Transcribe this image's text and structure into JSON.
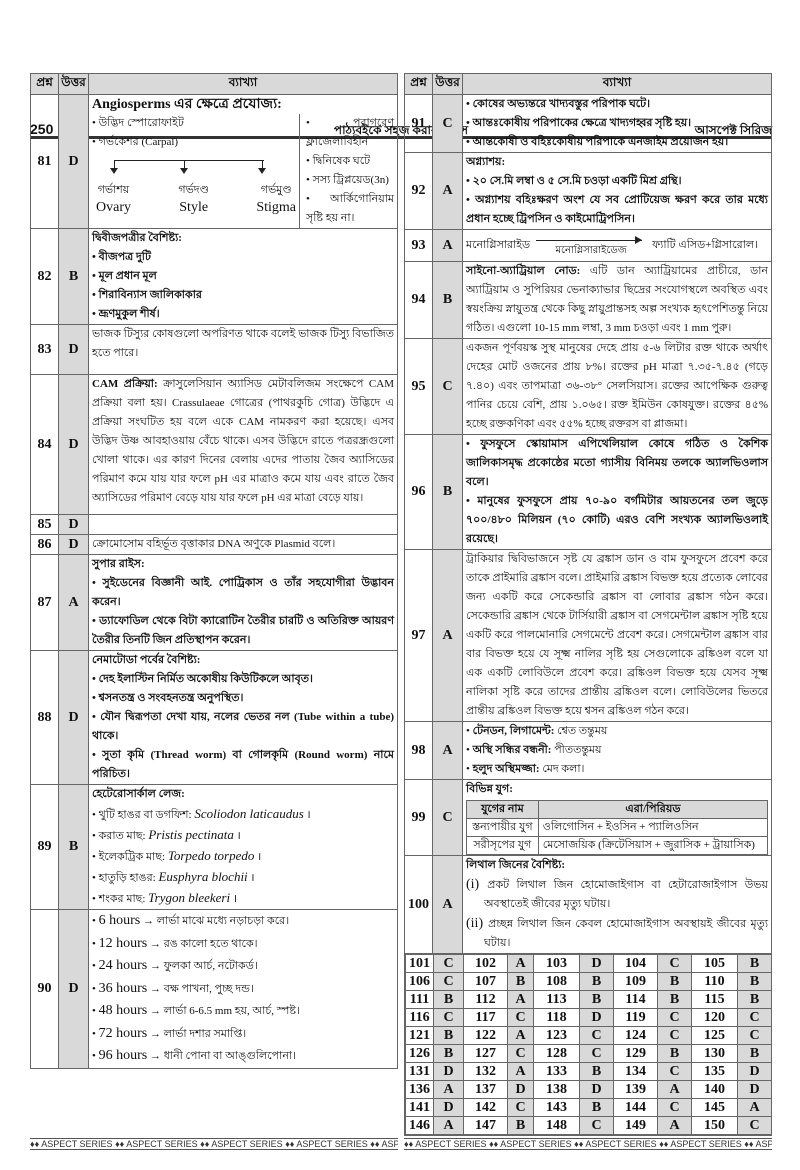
{
  "header": {
    "page_number": "250",
    "center_title": "পাঠ্যবইকে সহজ করার প্রয়াস",
    "right_title": "আসপেক্ট সিরিজ"
  },
  "columns": {
    "q": "প্রশ্ন",
    "a": "উত্তর",
    "e": "ব্যাখ্যা"
  },
  "left_rows": [
    {
      "n": "81",
      "a": "D",
      "type": "angio",
      "title": "Angiosperms এর ক্ষেত্রে প্রযোজ্য:",
      "left": [
        "উদ্ভিদ স্পোরোফাইট",
        "গর্ভকেশর (Carpal)"
      ],
      "parts": [
        {
          "bn": "গর্ভাশয়",
          "en": "Ovary"
        },
        {
          "bn": "গর্ভদণ্ড",
          "en": "Style"
        },
        {
          "bn": "গর্ভমুণ্ড",
          "en": "Stigma"
        }
      ],
      "right": [
        "পরাগরেণু ফ্লাজেলাবিহীন",
        "দ্বিনিষেক ঘটে",
        "সস্য ট্রিপ্লয়েড(3n)",
        "আর্কিগোনিয়াম সৃষ্টি হয় না।"
      ]
    },
    {
      "n": "82",
      "a": "B",
      "heading": "দ্বিবীজপত্রীর বৈশিষ্ট্য:",
      "bullets": [
        "বীজপত্র দুটি",
        "মূল প্রধান মূল",
        "শিরাবিন্যাস জালিকাকার",
        "ভ্রূণমুকুল শীর্ষ।"
      ]
    },
    {
      "n": "83",
      "a": "D",
      "para": "ভাজক টিস্যুর কোষগুলো অপরিণত থাকে বলেই ভাজক টিস্যু বিভাজিত হতে পারে।"
    },
    {
      "n": "84",
      "a": "D",
      "lead": "CAM প্রক্রিয়া:",
      "para": "ক্রাসুলেসিয়ান অ্যাসিড মেটাবলিজম সংক্ষেপে CAM প্রক্রিয়া বলা হয়। Crassulaeae গোত্রের (পাথরকুচি গোত্র) উদ্ভিদে এ প্রক্রিয়া সংঘটিত হয় বলে একে CAM নামকরণ করা হয়েছে। এসব উদ্ভিদ উষ্ণ আবহাওয়ায় বেঁচে থাকে। এসব উদ্ভিদে রাতে পত্ররন্ধ্রগুলো খোলা থাকে। এর কারণ দিনের বেলায় এদের পাতায় জৈব অ্যাসিডের পরিমাণ কমে যায় যার ফলে pH এর মাত্রাও কমে যায় এবং রাতে জৈব অ্যাসিডের পরিমাণ বেড়ে যায় যার ফলে pH এর মাত্রা বেড়ে যায়।"
    },
    {
      "n": "85",
      "a": "D"
    },
    {
      "n": "86",
      "a": "D",
      "para": "ক্রোমোসোম বহির্ভূত বৃত্তাকার DNA অণুকে Plasmid বলে।"
    },
    {
      "n": "87",
      "a": "A",
      "heading": "সুপার রাইস:",
      "bullets": [
        "সুইডেনের বিজ্ঞানী আই. পোট্রিকাস ও তাঁর সহযোগীরা উদ্ভাবন করেন।",
        "ড্যাফোডিল থেকে বিটা ক্যারোটিন তৈরীর চারটি ও অতিরিক্ত আয়রণ তৈরীর তিনটি জিন প্রতিস্থাপন করেন।"
      ]
    },
    {
      "n": "88",
      "a": "D",
      "heading": "নেমাটোডা পর্বের বৈশিষ্ট্য:",
      "bullets": [
        "দেহ ইলাস্টিন নির্মিত অকোষীয় কিউটিকলে আবৃত।",
        {
          "t": "শ্বসনতন্ত্র ও সংবহনতন্ত্র অনুপস্থিত।",
          "bold": true
        },
        {
          "t": "যৌন দ্বিরূপতা দেখা যায়, নলের ভেতর নল (Tube within a tube) থাকে।",
          "bold": true
        },
        "সুতা কৃমি (Thread worm) বা গোলকৃমি (Round worm) নামে পরিচিত।"
      ]
    },
    {
      "n": "89",
      "a": "B",
      "heading": "হেটেরোসার্কাল লেজ:",
      "species": [
        {
          "label": "থুটি হাঙর বা ডগফিশ:",
          "sci": "Scoliodon laticaudus"
        },
        {
          "label": "করাত মাছ:",
          "sci": "Pristis pectinata"
        },
        {
          "label": "ইলেকট্রিক মাছ:",
          "sci": "Torpedo torpedo"
        },
        {
          "label": "হাতুড়ি হাঙর:",
          "sci": "Eusphyra blochii"
        },
        {
          "label": "শংকর মাছ:",
          "sci": "Trygon bleekeri"
        }
      ]
    },
    {
      "n": "90",
      "a": "D",
      "hours": [
        {
          "h": "6 hours",
          "t": "লার্ভা মাঝে মধ্যে নড়াচড়া করে।"
        },
        {
          "h": "12 hours",
          "t": "রঙ কালো হতে থাকে।"
        },
        {
          "h": "24 hours",
          "t": "ফুলকা আর্চ, নটোকর্ড।"
        },
        {
          "h": "36 hours",
          "t": "বক্ষ পাখনা, পুচ্ছ দন্ড।"
        },
        {
          "h": "48 hours",
          "t": "লার্ভা 6-6.5 mm হয়, আর্চ, স্পষ্ট।"
        },
        {
          "h": "72 hours",
          "t": "লার্ভা দশার সমাপ্তি।"
        },
        {
          "h": "96 hours",
          "t": "ধানী পোনা বা আঙ্গুলিপোনা।"
        }
      ]
    }
  ],
  "right_rows": [
    {
      "n": "91",
      "a": "C",
      "bullets": [
        "কোষের অভ্যন্তরে খাদ্যবস্তুর পরিপাক ঘটে।",
        "আন্তঃকোষীয় পরিপাকের ক্ষেত্রে খাদ্যগহ্বর সৃষ্টি হয়।",
        "আন্তকোষী ও বহিঃকোষীয় পরিপাকে এনজাইম প্রয়োজন হয়।"
      ]
    },
    {
      "n": "92",
      "a": "A",
      "heading": "অগ্ন্যাশয়:",
      "bullets": [
        "২০ সে.মি লম্বা ও ৫ সে.মি চওড়া একটি মিশ্র গ্রন্থি।",
        "অগ্ন্যাশয় বহিঃক্ষরণ অংশ যে সব প্রোটিয়েজ ক্ষরণ করে তার মধ্যে প্রধান হচ্ছে ট্রিপসিন ও কাইমোট্রিপসিন।"
      ]
    },
    {
      "n": "93",
      "a": "A",
      "type": "reaction",
      "reactant": "মনোগ্লিসারাইড",
      "enzyme": "মনোগ্লিসারাইডেজ",
      "product": "ফ্যাটি এসিড+গ্লিসারোল।"
    },
    {
      "n": "94",
      "a": "B",
      "lead": "সাইনো-অ্যাট্রিয়াল নোড:",
      "para": "এটি ডান অ্যাট্রিয়ামের প্রাচীরে, ডান অ্যাট্রিয়াম ও সুপিরিয়র ভেনাক্যাভার ছিদ্রের সংযোগস্থলে অবস্থিত এবং স্বয়ংক্রিয় স্নায়ুতন্ত্র থেকে কিছু স্নায়ুপ্রান্তসহ অল্প সংখ্যক হৃৎপেশিতন্তু নিয়ে গঠিত। এগুলো 10-15 mm লম্বা, 3 mm চওড়া এবং 1 mm পুরু।"
    },
    {
      "n": "95",
      "a": "C",
      "para": "একজন পূর্ণবয়স্ক সুস্থ মানুষের দেহে প্রায় ৫-৬ লিটার রক্ত থাকে অর্থাৎ দেহের মোট ওজনের প্রায় ৮%। রক্তের pH মাত্রা ৭.৩৫-৭.৪৫ (গড়ে ৭.৪০) এবং তাপমাত্রা ৩৬-৩৮° সেলসিয়াস। রক্তের আপেক্ষিক গুরুত্ব পানির চেয়ে বেশি, প্রায় ১.০৬৫। রক্ত ইমিউন কোষযুক্ত। রক্তের ৪৫% হচ্ছে রক্তকণিকা এবং ৫৫% হচ্ছে রক্তরস বা প্লাজমা।"
    },
    {
      "n": "96",
      "a": "B",
      "bullets": [
        "ফুসফুসে স্কোয়ামাস এপিথেলিয়াল কোষে গঠিত ও কৈশিক জালিকাসমৃদ্ধ প্রকোষ্ঠের মতো গ্যাসীয় বিনিময় তলকে অ্যালভিওলাস বলে।",
        "মানুষের ফুসফুসে প্রায় ৭০-৯০ বর্গমিটার আয়তনের তল জুড়ে ৭০০/৪৮০ মিলিয়ন (৭০ কোটি) এরও বেশি সংখ্যক অ্যালভিওলাই রয়েছে।"
      ]
    },
    {
      "n": "97",
      "a": "A",
      "para": "ট্রাকিয়ার দ্বিবিভাজনে সৃষ্ট যে ব্রঙ্কাস ডান ও বাম ফুসফুসে প্রবেশ করে তাকে প্রাইমারি ব্রঙ্কাস বলে। প্রাইমারি ব্রঙ্কাস বিভক্ত হয়ে প্রত্যেক লোবের জন্য একটি করে সেকেন্ডারি ব্রঙ্কাস বা লোবার ব্রঙ্কাস গঠন করে। সেকেন্ডারি ব্রঙ্কাস থেকে টার্সিয়ারী ব্রঙ্কাস বা সেগমেন্টাল ব্রঙ্কাস সৃষ্টি হয়ে একটি করে পালমোনারি সেগমেন্টে প্রবেশ করে। সেগমেন্টাল ব্রঙ্কাস বার বার বিভক্ত হয়ে যে সূক্ষ্ম নালির সৃষ্টি হয় সেগুলোকে ব্রঙ্কিওল বলে যা এক একটি লোবিউলে প্রবেশ করে। ব্রঙ্কিওল বিভক্ত হয়ে যেসব সূক্ষ্ম নালিকা সৃষ্টি করে তাদের প্রান্তীয় ব্রঙ্কিওল বলে। লোবিউলের ভিতরে প্রান্তীয় ব্রঙ্কিওল বিভক্ত হয়ে শ্বসন ব্রঙ্কিওল গঠন করে।"
    },
    {
      "n": "98",
      "a": "A",
      "labeled": [
        {
          "label": "টেনডন, লিগামেন্ট:",
          "t": "শ্বেত তন্তুময়"
        },
        {
          "label": "অস্থি সন্ধির বন্ধনী:",
          "t": "পীততন্তুময়"
        },
        {
          "label": "হলুদ অস্থিমজ্জা:",
          "t": "মেদ কলা।"
        }
      ]
    },
    {
      "n": "99",
      "a": "C",
      "heading": "বিভিন্ন যুগ:",
      "table": {
        "headers": [
          "যুগের নাম",
          "এরা/পিরিয়ড"
        ],
        "rows": [
          [
            "স্তন্যপায়ীর যুগ",
            "ওলিগোসিন + ইওসিন + প্যালিওসিন"
          ],
          [
            "সরীসৃপের যুগ",
            "মেসোজয়িক (ক্রিটেসিয়াস + জুরাসিক + ট্রায়াসিক)"
          ]
        ]
      }
    },
    {
      "n": "100",
      "a": "A",
      "heading": "লিথাল জিনের বৈশিষ্ট্য:",
      "numbered": [
        {
          "k": "(i)",
          "t": "প্রকট লিথাল জিন হোমোজাইগাস বা হেটারোজাইগাস উভয় অবস্থাতেই জীবের মৃত্যু ঘটায়।"
        },
        {
          "k": "(ii)",
          "t": "প্রচ্ছন্ন লিথাল জিন কেবল হোমোজাইগাস অবস্থায়ই জীবের মৃত্যু ঘটায়।"
        }
      ]
    }
  ],
  "answer_grid": [
    [
      "101",
      "C",
      "102",
      "A",
      "103",
      "D",
      "104",
      "C",
      "105",
      "B"
    ],
    [
      "106",
      "C",
      "107",
      "B",
      "108",
      "B",
      "109",
      "B",
      "110",
      "B"
    ],
    [
      "111",
      "B",
      "112",
      "A",
      "113",
      "B",
      "114",
      "B",
      "115",
      "B"
    ],
    [
      "116",
      "C",
      "117",
      "C",
      "118",
      "D",
      "119",
      "C",
      "120",
      "C"
    ],
    [
      "121",
      "B",
      "122",
      "A",
      "123",
      "C",
      "124",
      "C",
      "125",
      "C"
    ],
    [
      "126",
      "B",
      "127",
      "C",
      "128",
      "C",
      "129",
      "B",
      "130",
      "B"
    ],
    [
      "131",
      "D",
      "132",
      "A",
      "133",
      "B",
      "134",
      "C",
      "135",
      "D"
    ],
    [
      "136",
      "A",
      "137",
      "D",
      "138",
      "D",
      "139",
      "A",
      "140",
      "D"
    ],
    [
      "141",
      "D",
      "142",
      "C",
      "143",
      "B",
      "144",
      "C",
      "145",
      "A"
    ],
    [
      "146",
      "A",
      "147",
      "B",
      "148",
      "C",
      "149",
      "A",
      "150",
      "C"
    ]
  ],
  "footer": {
    "text": "♦♦ ASPECT SERIES"
  }
}
